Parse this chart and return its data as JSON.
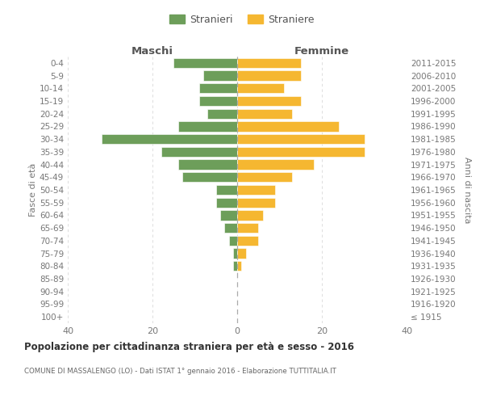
{
  "age_groups": [
    "100+",
    "95-99",
    "90-94",
    "85-89",
    "80-84",
    "75-79",
    "70-74",
    "65-69",
    "60-64",
    "55-59",
    "50-54",
    "45-49",
    "40-44",
    "35-39",
    "30-34",
    "25-29",
    "20-24",
    "15-19",
    "10-14",
    "5-9",
    "0-4"
  ],
  "birth_years": [
    "≤ 1915",
    "1916-1920",
    "1921-1925",
    "1926-1930",
    "1931-1935",
    "1936-1940",
    "1941-1945",
    "1946-1950",
    "1951-1955",
    "1956-1960",
    "1961-1965",
    "1966-1970",
    "1971-1975",
    "1976-1980",
    "1981-1985",
    "1986-1990",
    "1991-1995",
    "1996-2000",
    "2001-2005",
    "2006-2010",
    "2011-2015"
  ],
  "maschi": [
    0,
    0,
    0,
    0,
    1,
    1,
    2,
    3,
    4,
    5,
    5,
    13,
    14,
    18,
    32,
    14,
    7,
    9,
    9,
    8,
    15
  ],
  "femmine": [
    0,
    0,
    0,
    0,
    1,
    2,
    5,
    5,
    6,
    9,
    9,
    13,
    18,
    30,
    30,
    24,
    13,
    15,
    11,
    15,
    15
  ],
  "maschi_color": "#6d9e5a",
  "femmine_color": "#f5b731",
  "legend_maschi": "Stranieri",
  "legend_femmine": "Straniere",
  "left_label": "Maschi",
  "right_label": "Femmine",
  "ylabel_left": "Fasce di età",
  "ylabel_right": "Anni di nascita",
  "xlim": 40,
  "title": "Popolazione per cittadinanza straniera per età e sesso - 2016",
  "subtitle": "COMUNE DI MASSALENGO (LO) - Dati ISTAT 1° gennaio 2016 - Elaborazione TUTTITALIA.IT",
  "background_color": "#ffffff",
  "grid_color": "#d8d8d8",
  "bar_height": 0.78,
  "bar_edgecolor": "#ffffff",
  "bar_linewidth": 0.4
}
